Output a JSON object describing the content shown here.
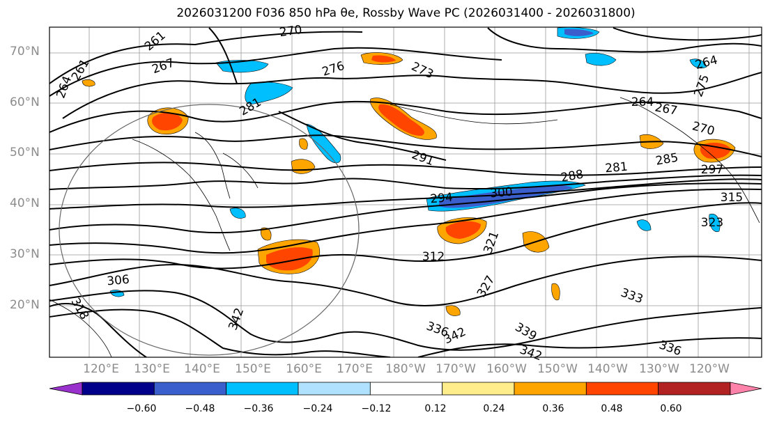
{
  "title": "2026031200 F036 850 hPa θe, Rossby Wave PC (2026031400 - 2026031800)",
  "lat_labels": [
    "70°N",
    "60°N",
    "50°N",
    "40°N",
    "30°N",
    "20°N"
  ],
  "lon_labels": [
    "120°E",
    "130°E",
    "140°E",
    "150°E",
    "160°E",
    "170°E",
    "180°W",
    "170°W",
    "160°W",
    "150°W",
    "140°W",
    "130°W",
    "120°W"
  ],
  "contour_labels": [
    "270",
    "267",
    "261",
    "261",
    "264",
    "276",
    "273",
    "281",
    "264",
    "267",
    "264",
    "275",
    "270",
    "291",
    "288",
    "281",
    "285",
    "297",
    "294",
    "300",
    "312",
    "321",
    "306",
    "318",
    "342",
    "327",
    "336",
    "342",
    "339",
    "342",
    "336",
    "333",
    "323",
    "315"
  ],
  "colorbar": {
    "ticks": [
      "−0.60",
      "−0.48",
      "−0.36",
      "−0.24",
      "−0.12",
      "0.12",
      "0.24",
      "0.36",
      "0.48",
      "0.60"
    ],
    "colors": [
      "#9932CC",
      "#00008B",
      "#3A5FCD",
      "#00BFFF",
      "#B0E2FF",
      "#FFFFFF",
      "#FFEC8B",
      "#FFA500",
      "#FF4500",
      "#B22222",
      "#FF82AB"
    ]
  }
}
